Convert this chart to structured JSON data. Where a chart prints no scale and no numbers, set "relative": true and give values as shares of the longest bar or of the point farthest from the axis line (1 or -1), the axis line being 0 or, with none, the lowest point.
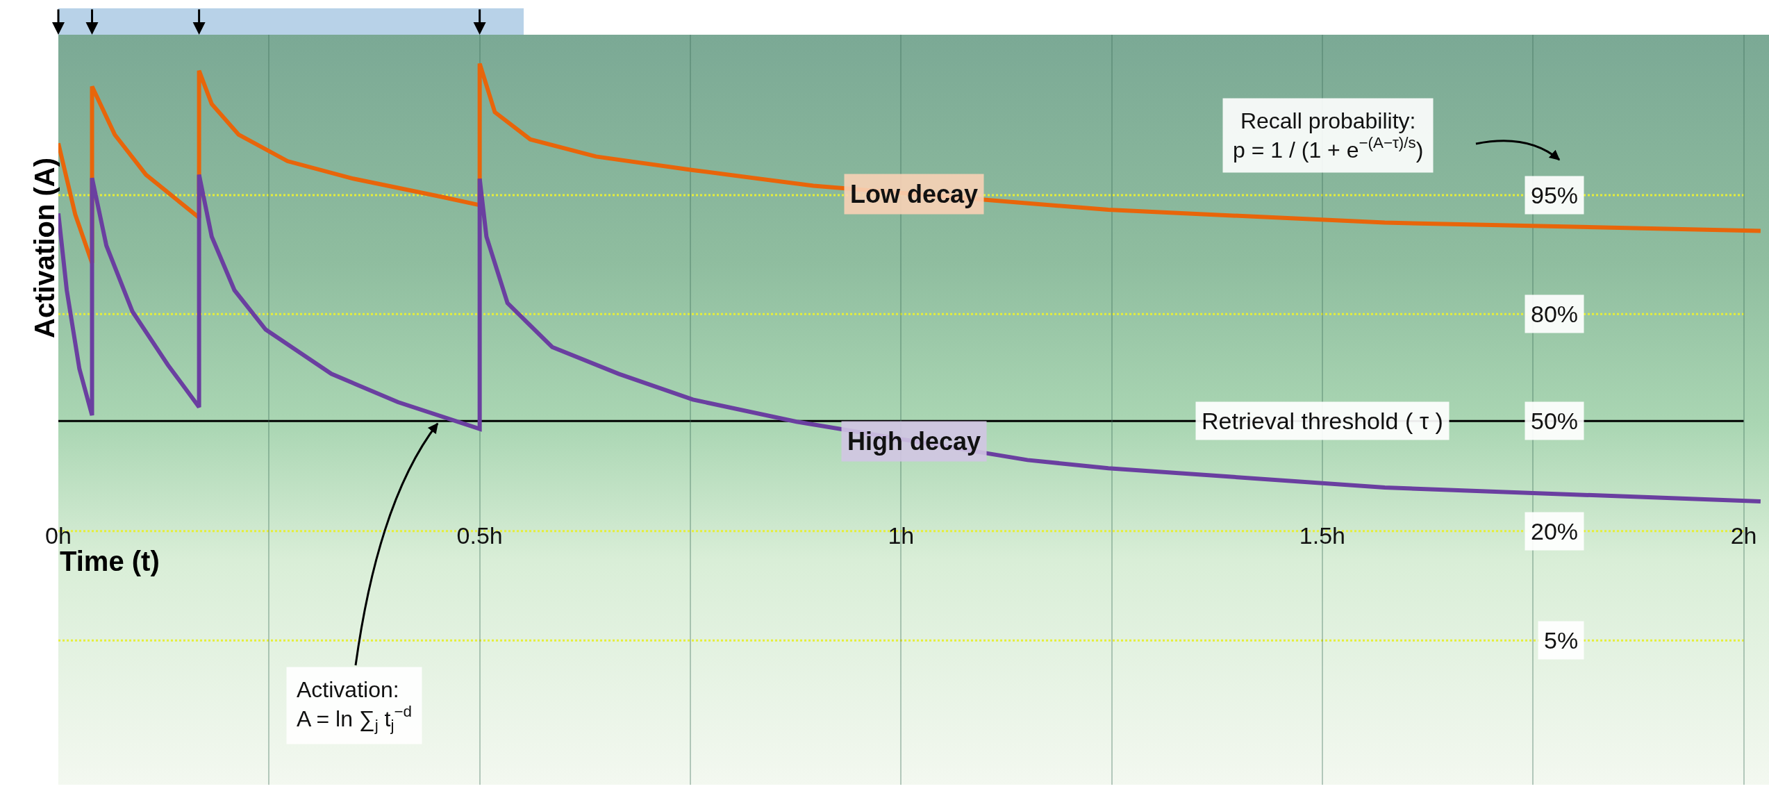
{
  "chart_data": {
    "type": "line",
    "relative": true,
    "xlabel": "Time (t)",
    "ylabel": "Activation (A)",
    "xlim": [
      0,
      2.03
    ],
    "xticks": [
      {
        "value": 0,
        "label": "0h"
      },
      {
        "value": 0.25,
        "label": null
      },
      {
        "value": 0.5,
        "label": "0.5h"
      },
      {
        "value": 0.75,
        "label": null
      },
      {
        "value": 1,
        "label": "1h"
      },
      {
        "value": 1.25,
        "label": null
      },
      {
        "value": 1.5,
        "label": "1.5h"
      },
      {
        "value": 1.75,
        "label": null
      },
      {
        "value": 2,
        "label": "2h"
      }
    ],
    "tick_labels": "x",
    "grid": "x",
    "legend": false,
    "marker": "none",
    "line_style": "solid",
    "series": [
      {
        "name": "Low decay",
        "color": "#e8650a",
        "x": [
          0,
          0.02,
          0.04,
          0.04,
          0.067,
          0.104,
          0.167,
          0.167,
          0.182,
          0.214,
          0.272,
          0.35,
          0.455,
          0.5,
          0.5,
          0.518,
          0.56,
          0.638,
          0.753,
          0.896,
          1.246,
          1.574,
          2.02
        ],
        "values": [
          0.777,
          0.578,
          0.442,
          0.936,
          0.801,
          0.689,
          0.569,
          0.98,
          0.887,
          0.801,
          0.727,
          0.678,
          0.627,
          0.604,
          1.0,
          0.864,
          0.788,
          0.74,
          0.702,
          0.658,
          0.591,
          0.555,
          0.532
        ]
      },
      {
        "name": "High decay",
        "color": "#6a3fa0",
        "x": [
          0,
          0.01,
          0.025,
          0.04,
          0.04,
          0.057,
          0.088,
          0.13,
          0.167,
          0.167,
          0.182,
          0.209,
          0.246,
          0.324,
          0.403,
          0.5,
          0.5,
          0.508,
          0.533,
          0.586,
          0.665,
          0.753,
          0.876,
          1.15,
          1.246,
          1.574,
          2.02
        ],
        "values": [
          0.581,
          0.366,
          0.146,
          0.016,
          0.68,
          0.491,
          0.306,
          0.157,
          0.039,
          0.689,
          0.516,
          0.366,
          0.256,
          0.132,
          0.053,
          -0.022,
          0.678,
          0.516,
          0.33,
          0.207,
          0.132,
          0.06,
          -0.002,
          -0.109,
          -0.132,
          -0.186,
          -0.225
        ]
      }
    ],
    "ref_lines": [
      {
        "axis": "y",
        "value": 0.632,
        "color": "#e6ee3a",
        "line_style": "dotted"
      },
      {
        "axis": "y",
        "value": 0.299,
        "color": "#e6ee3a",
        "line_style": "dotted"
      },
      {
        "axis": "y",
        "value": 0,
        "color": "#000000",
        "line_style": "solid"
      },
      {
        "axis": "y",
        "value": -0.308,
        "color": "#e6ee3a",
        "line_style": "dotted"
      },
      {
        "axis": "y",
        "value": -0.614,
        "color": "#e6ee3a",
        "line_style": "dotted"
      }
    ],
    "annotations": [
      {
        "text": "95%",
        "y": 0.632
      },
      {
        "text": "80%",
        "y": 0.299
      },
      {
        "text": "50%",
        "y": 0
      },
      {
        "text": "20%",
        "y": -0.308
      },
      {
        "text": "5%",
        "y": -0.614
      },
      "Recall probability:\np = 1 / (1 + e$^{−(A−τ)/s}$)",
      "Activation:\nA = ln ∑$_{j}$ t$_{j}$$^{−d}$",
      {
        "text": "Retrieval threshold ( τ )",
        "x": 1.5,
        "y": 0
      }
    ]
  }
}
